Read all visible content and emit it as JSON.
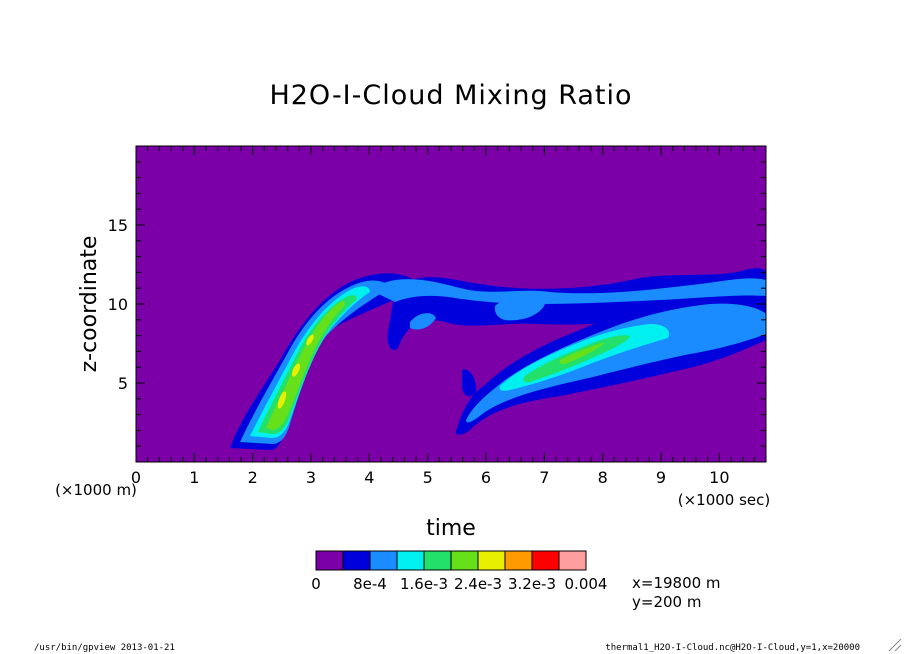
{
  "chart_data": {
    "type": "heatmap",
    "title": "H2O-I-Cloud Mixing Ratio",
    "xlabel": "time",
    "ylabel": "z-coordinate",
    "x_unit": "(×1000 sec)",
    "y_unit": "(×1000 m)",
    "xlim": [
      0,
      10.8
    ],
    "ylim": [
      0,
      20
    ],
    "x_ticks": [
      0,
      1,
      2,
      3,
      4,
      5,
      6,
      7,
      8,
      9,
      10
    ],
    "y_ticks": [
      5,
      10,
      15
    ],
    "colorbar": {
      "colors": [
        "#7b00a8",
        "#0000dd",
        "#1a8cff",
        "#00f0f0",
        "#22e06a",
        "#66e01a",
        "#e8f000",
        "#ff9a00",
        "#ff0000",
        "#ff9e9e"
      ],
      "tick_labels": [
        "0",
        "8e-4",
        "1.6e-3",
        "2.4e-3",
        "3.2e-3",
        "0.004"
      ]
    },
    "fields": {
      "background_level": 0,
      "features": [
        {
          "name": "rising plume",
          "levels": [
            1,
            2,
            3,
            4,
            5
          ],
          "path": [
            [
              1.7,
              1.0
            ],
            [
              2.1,
              1.8
            ],
            [
              2.5,
              4.0
            ],
            [
              2.9,
              7.0
            ],
            [
              3.3,
              9.4
            ],
            [
              3.8,
              11.0
            ],
            [
              4.2,
              11.6
            ]
          ],
          "peak_level": 6
        },
        {
          "name": "upper cloud layer",
          "levels": [
            1,
            2
          ],
          "z_range": [
            9.8,
            12.0
          ],
          "t_range": [
            3.8,
            10.8
          ]
        },
        {
          "name": "second plume",
          "levels": [
            1,
            2,
            3,
            4
          ],
          "path": [
            [
              5.5,
              2.5
            ],
            [
              6.2,
              4.5
            ],
            [
              7.0,
              5.8
            ],
            [
              8.0,
              7.5
            ],
            [
              9.0,
              8.7
            ],
            [
              10.0,
              9.2
            ]
          ],
          "peak_level": 4
        }
      ]
    }
  },
  "info": {
    "coords": [
      "x=19800 m",
      "y=200 m"
    ],
    "footer_left": "/usr/bin/gpview  2013-01-21",
    "footer_right": "thermal1_H2O-I-Cloud.nc@H2O-I-Cloud,y=1,x=20000"
  }
}
